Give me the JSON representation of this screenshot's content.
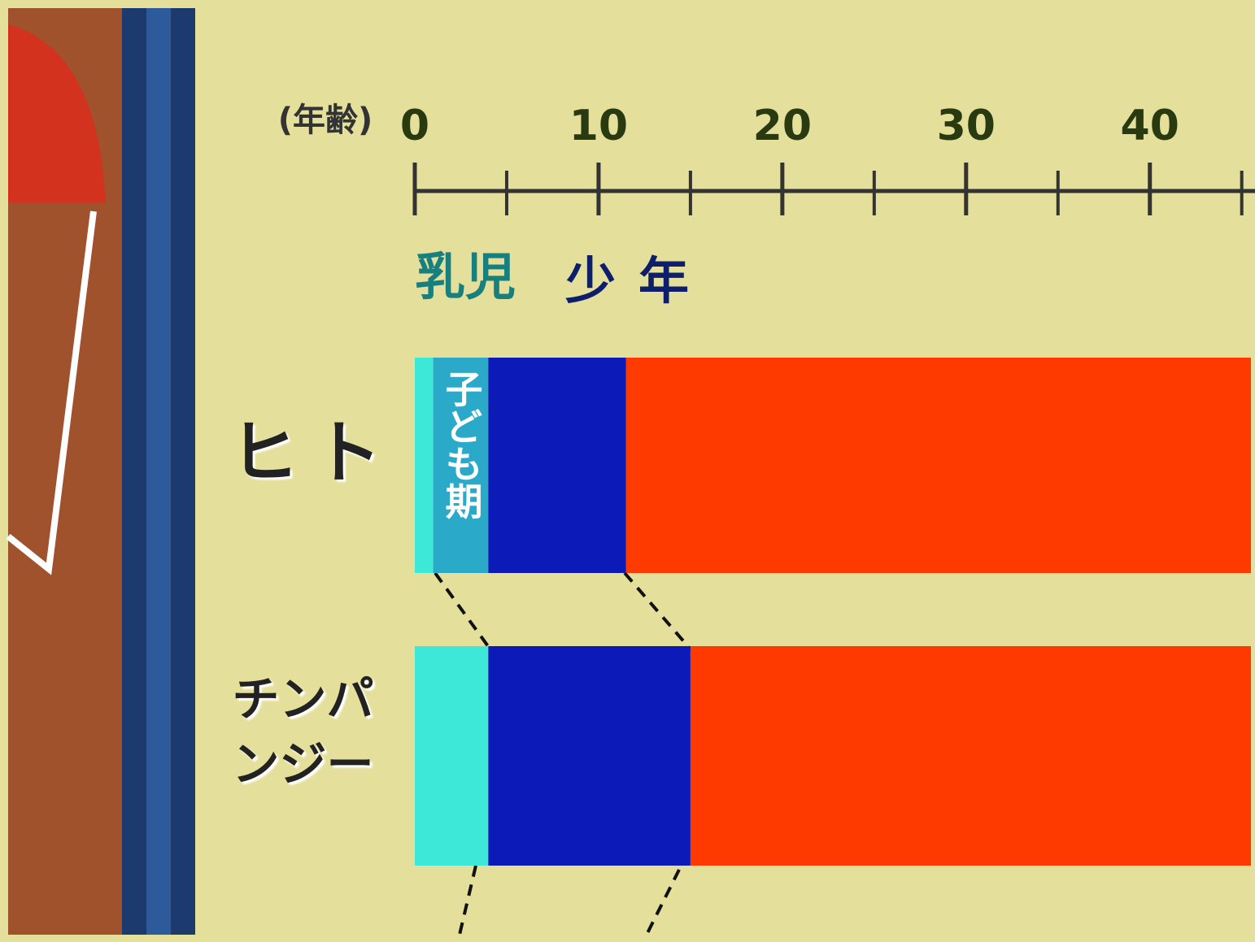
{
  "chart_data": {
    "type": "stacked-barh",
    "x_label": "(年齢)",
    "categories": [
      "ヒト",
      "チンパンジー"
    ],
    "series": [
      {
        "name": "乳児",
        "color": "#3de8d8",
        "values": [
          1,
          4
        ]
      },
      {
        "name": "子ども期",
        "color": "#2aa9c9",
        "values": [
          3,
          0
        ]
      },
      {
        "name": "少年",
        "color": "#0c1ab8",
        "values": [
          7.5,
          11
        ]
      },
      {
        "color": "#ff3a00",
        "values": [
          34,
          30.5
        ]
      }
    ],
    "xlim": [
      0,
      45.5
    ],
    "xticks": [
      0,
      10,
      20,
      30,
      40
    ],
    "minor_xticks": [
      5,
      15,
      25,
      35,
      45
    ]
  }
}
